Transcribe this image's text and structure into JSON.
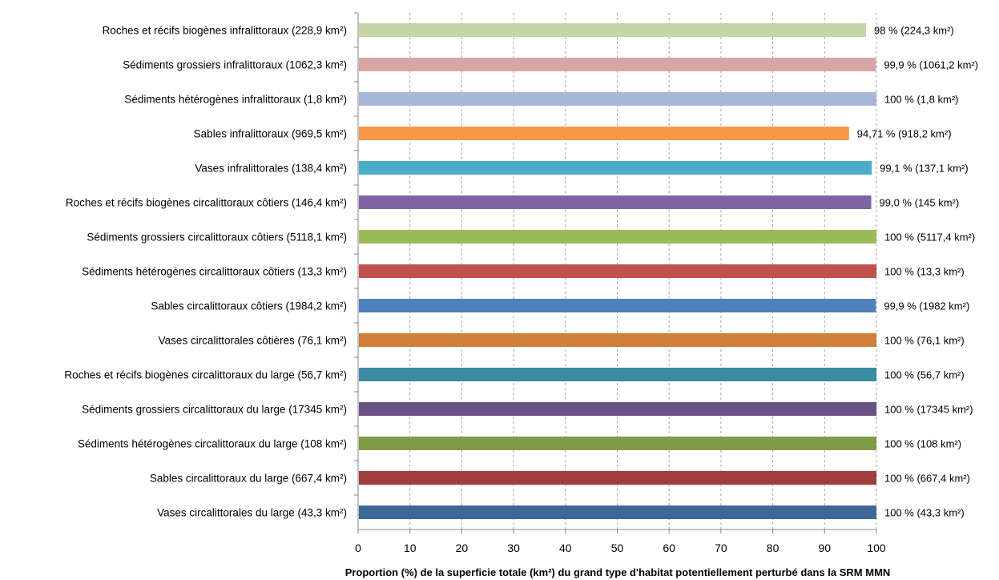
{
  "chart_data": {
    "type": "bar",
    "orientation": "horizontal",
    "xlabel": "Proportion (%) de la superficie totale (km²) du grand type d'habitat potentiellement perturbé dans la SRM MMN",
    "xlim": [
      0,
      100
    ],
    "xticks": [
      "0",
      "10",
      "20",
      "30",
      "40",
      "50",
      "60",
      "70",
      "80",
      "90",
      "100"
    ],
    "grid": "vertical-dashed",
    "legend": "none",
    "bars": [
      {
        "category": "Roches et récifs biogènes infralittoraux (228,9 km²)",
        "value": 98,
        "label": "98 % (224,3 km²)",
        "color": "#c4d6a8"
      },
      {
        "category": "Sédiments grossiers infralittoraux (1062,3 km²)",
        "value": 99.9,
        "label": "99,9 % (1061,2 km²)",
        "color": "#d9a6a6"
      },
      {
        "category": "Sédiments hétérogènes infralittoraux (1,8 km²)",
        "value": 100,
        "label": "100 % (1,8 km²)",
        "color": "#a9b8d9"
      },
      {
        "category": "Sables infralittoraux (969,5 km²)",
        "value": 94.71,
        "label": "94,71 % (918,2 km²)",
        "color": "#f79646"
      },
      {
        "category": "Vases infralittorales (138,4 km²)",
        "value": 99.1,
        "label": "99,1 % (137,1 km²)",
        "color": "#4bacc6"
      },
      {
        "category": "Roches et récifs biogènes circalittoraux côtiers (146,4 km²)",
        "value": 99.0,
        "label": "99,0 % (145 km²)",
        "color": "#8064a2"
      },
      {
        "category": "Sédiments grossiers circalittoraux côtiers (5118,1 km²)",
        "value": 100,
        "label": "100 % (5117,4 km²)",
        "color": "#9bbb59"
      },
      {
        "category": "Sédiments hétérogènes circalittoraux côtiers (13,3 km²)",
        "value": 100,
        "label": "100 % (13,3 km²)",
        "color": "#c0504d"
      },
      {
        "category": "Sables circalittoraux côtiers (1984,2 km²)",
        "value": 99.9,
        "label": "99,9 % (1982 km²)",
        "color": "#4f81bd"
      },
      {
        "category": "Vases circalittorales côtières (76,1 km²)",
        "value": 100,
        "label": "100 % (76,1 km²)",
        "color": "#d07e3a"
      },
      {
        "category": "Roches et récifs biogènes circalittoraux du large (56,7 km²)",
        "value": 100,
        "label": "100 % (56,7 km²)",
        "color": "#3b8ba0"
      },
      {
        "category": "Sédiments grossiers circalittoraux du large (17345 km²)",
        "value": 100,
        "label": "100 % (17345 km²)",
        "color": "#6a5287"
      },
      {
        "category": "Sédiments hétérogènes circalittoraux du large (108 km²)",
        "value": 100,
        "label": "100 % (108 km²)",
        "color": "#7f9a48"
      },
      {
        "category": "Sables circalittoraux du large (667,4 km²)",
        "value": 100,
        "label": "100 % (667,4 km²)",
        "color": "#9e3d3b"
      },
      {
        "category": "Vases circalittorales du large (43,3 km²)",
        "value": 100,
        "label": "100 % (43,3 km²)",
        "color": "#3e689a"
      }
    ]
  }
}
